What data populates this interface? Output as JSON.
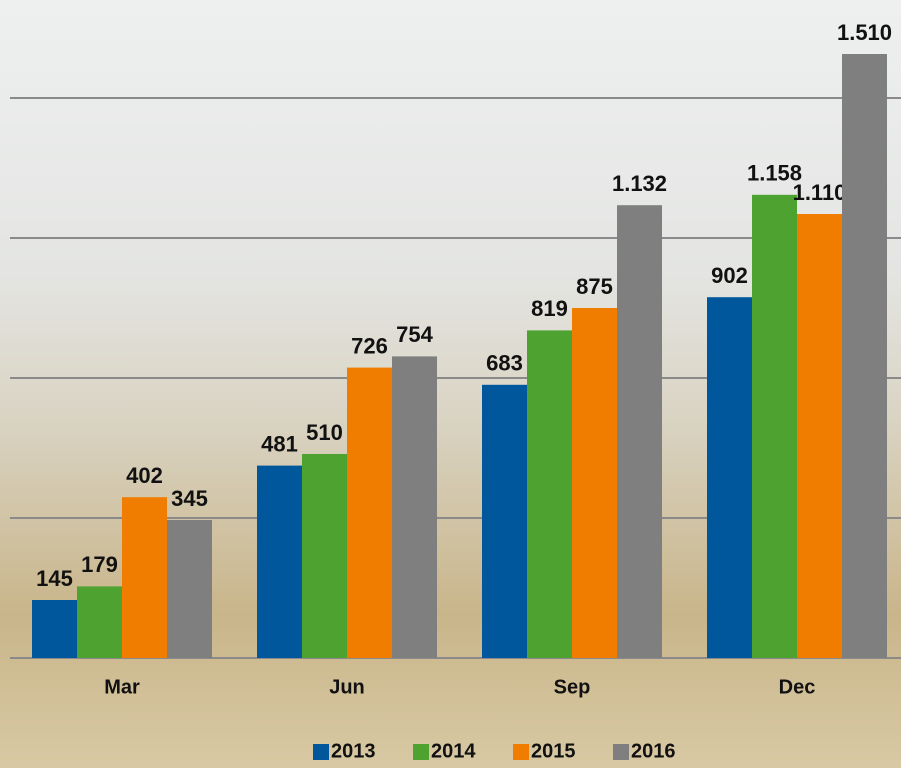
{
  "chart_data": {
    "type": "bar",
    "categories": [
      "Mar",
      "Jun",
      "Sep",
      "Dec"
    ],
    "series": [
      {
        "name": "2013",
        "color": "#00579c",
        "values": [
          145,
          481,
          683,
          902
        ]
      },
      {
        "name": "2014",
        "color": "#4ea22f",
        "values": [
          179,
          510,
          819,
          1158
        ],
        "value_labels": [
          "179",
          "510",
          "819",
          "1.158"
        ]
      },
      {
        "name": "2015",
        "color": "#f07c00",
        "values": [
          402,
          726,
          875,
          1110
        ],
        "value_labels": [
          "402",
          "726",
          "875",
          "1.110"
        ]
      },
      {
        "name": "2016",
        "color": "#7f7f7f",
        "values": [
          345,
          754,
          1132,
          1510
        ],
        "value_labels": [
          "345",
          "754",
          "1.132",
          "1.510"
        ]
      }
    ],
    "ylim": [
      0,
      1645
    ],
    "yticks": [
      0,
      350,
      700,
      1050,
      1400
    ],
    "grid": true,
    "ytick_labels": false,
    "legend": "bottom"
  }
}
